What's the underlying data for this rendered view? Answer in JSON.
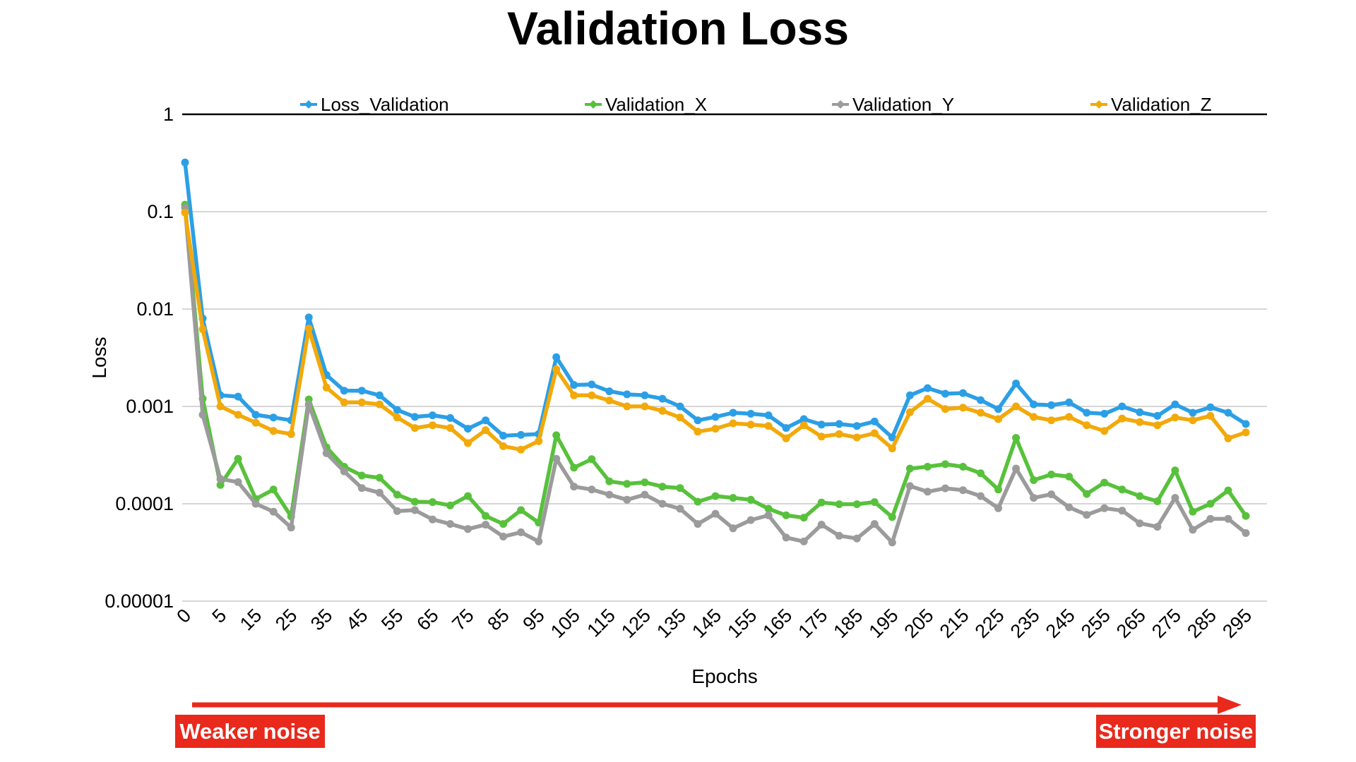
{
  "chart_data": {
    "type": "line",
    "title": "Validation Loss",
    "xlabel": "Epochs",
    "ylabel": "Loss",
    "y_scale": "log",
    "ylim": [
      1e-05,
      1
    ],
    "grid": "horizontal",
    "legend_position": "top",
    "gridline_color": "#C9C9C9",
    "axis_top_line_color": "#000000",
    "text_color": "#000000",
    "x_labels_every_n_points": 2,
    "y_tick_values": [
      1,
      0.1,
      0.01,
      0.001,
      0.0001,
      1e-05
    ],
    "y_tick_labels": [
      "1",
      "0.1",
      "0.01",
      "0.001",
      "0.0001",
      "0.00001"
    ],
    "x_tick_labels": [
      "0",
      "5",
      "15",
      "25",
      "35",
      "45",
      "55",
      "65",
      "75",
      "85",
      "95",
      "105",
      "115",
      "125",
      "135",
      "145",
      "155",
      "165",
      "175",
      "185",
      "195",
      "205",
      "215",
      "225",
      "235",
      "245",
      "255",
      "265",
      "275",
      "285",
      "295"
    ],
    "series": [
      {
        "name": "Loss_Validation",
        "color": "#2B9FE6",
        "values": [
          0.32,
          0.008,
          0.0013,
          0.00126,
          0.00082,
          0.00077,
          0.00072,
          0.0082,
          0.0021,
          0.00145,
          0.00145,
          0.0013,
          0.00092,
          0.00078,
          0.00081,
          0.00076,
          0.00059,
          0.00072,
          0.0005,
          0.00051,
          0.00052,
          0.0032,
          0.00166,
          0.00168,
          0.00143,
          0.00133,
          0.0013,
          0.0012,
          0.001,
          0.00072,
          0.00078,
          0.00086,
          0.00084,
          0.00081,
          0.0006,
          0.00074,
          0.00065,
          0.00066,
          0.00063,
          0.0007,
          0.00048,
          0.0013,
          0.00154,
          0.00135,
          0.00137,
          0.00116,
          0.00094,
          0.00172,
          0.00105,
          0.00103,
          0.0011,
          0.00086,
          0.00084,
          0.001,
          0.00087,
          0.0008,
          0.00105,
          0.00086,
          0.00098,
          0.00086,
          0.00066
        ]
      },
      {
        "name": "Validation_X",
        "color": "#58C13C",
        "values": [
          0.118,
          0.0012,
          0.000156,
          0.00029,
          0.000112,
          0.00014,
          7.4e-05,
          0.00118,
          0.00038,
          0.00024,
          0.000195,
          0.000185,
          0.000124,
          0.000105,
          0.000104,
          9.6e-05,
          0.00012,
          7.5e-05,
          6.2e-05,
          8.6e-05,
          6.4e-05,
          0.000505,
          0.000235,
          0.000287,
          0.00017,
          0.00016,
          0.000166,
          0.00015,
          0.000145,
          0.000105,
          0.00012,
          0.000115,
          0.00011,
          8.9e-05,
          7.6e-05,
          7.2e-05,
          0.000103,
          9.9e-05,
          9.9e-05,
          0.000104,
          7.3e-05,
          0.00023,
          0.00024,
          0.000255,
          0.00024,
          0.000206,
          0.00014,
          0.000475,
          0.000175,
          0.0002,
          0.00019,
          0.000126,
          0.000165,
          0.00014,
          0.00012,
          0.000106,
          0.00022,
          8.3e-05,
          0.0001,
          0.000137,
          7.5e-05
        ]
      },
      {
        "name": "Validation_Y",
        "color": "#9B9B9B",
        "values": [
          0.11,
          0.00082,
          0.00018,
          0.000167,
          0.0001,
          8.3e-05,
          5.7e-05,
          0.00105,
          0.00033,
          0.000215,
          0.000145,
          0.00013,
          8.4e-05,
          8.6e-05,
          6.9e-05,
          6.2e-05,
          5.5e-05,
          6.1e-05,
          4.6e-05,
          5.1e-05,
          4.1e-05,
          0.00029,
          0.00015,
          0.00014,
          0.000124,
          0.00011,
          0.000124,
          0.0001,
          8.9e-05,
          6.2e-05,
          7.9e-05,
          5.6e-05,
          6.8e-05,
          7.6e-05,
          4.5e-05,
          4.1e-05,
          6.1e-05,
          4.7e-05,
          4.4e-05,
          6.2e-05,
          4e-05,
          0.000152,
          0.000133,
          0.000144,
          0.000138,
          0.00012,
          9e-05,
          0.00023,
          0.000115,
          0.000125,
          9.2e-05,
          7.7e-05,
          9e-05,
          8.5e-05,
          6.3e-05,
          5.8e-05,
          0.000115,
          5.4e-05,
          7e-05,
          7e-05,
          5e-05
        ]
      },
      {
        "name": "Validation_Z",
        "color": "#F2A90A",
        "values": [
          0.098,
          0.0062,
          0.001,
          0.00082,
          0.00068,
          0.00056,
          0.00052,
          0.0063,
          0.00156,
          0.0011,
          0.0011,
          0.00105,
          0.00077,
          0.0006,
          0.00064,
          0.0006,
          0.00042,
          0.00057,
          0.00039,
          0.00036,
          0.00044,
          0.0024,
          0.0013,
          0.0013,
          0.00115,
          0.001,
          0.001,
          0.0009,
          0.00077,
          0.00055,
          0.00059,
          0.00067,
          0.00065,
          0.00063,
          0.00047,
          0.00064,
          0.00049,
          0.00052,
          0.00048,
          0.00053,
          0.00037,
          0.00087,
          0.0012,
          0.00094,
          0.00097,
          0.00086,
          0.00074,
          0.001,
          0.00078,
          0.00072,
          0.00078,
          0.00064,
          0.00056,
          0.00075,
          0.00069,
          0.00064,
          0.00077,
          0.00072,
          0.0008,
          0.00047,
          0.00054
        ]
      }
    ]
  },
  "annotations": {
    "arrow_color": "#E8291C",
    "label_bg": "#E8291C",
    "label_text_color": "#FFFFFF",
    "weaker_label": "Weaker noise",
    "stronger_label": "Stronger noise"
  }
}
